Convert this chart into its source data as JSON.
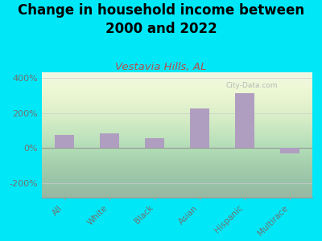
{
  "title": "Change in household income between\n2000 and 2022",
  "subtitle": "Vestavia Hills, AL",
  "categories": [
    "All",
    "White",
    "Black",
    "Asian",
    "Hispanic",
    "Multirace"
  ],
  "values": [
    75,
    85,
    55,
    225,
    310,
    -30
  ],
  "bar_color": "#b09ec0",
  "background_outer": "#00e8f8",
  "title_fontsize": 12,
  "subtitle_fontsize": 9.5,
  "subtitle_color": "#b05050",
  "tick_label_color": "#707070",
  "ylim": [
    -280,
    430
  ],
  "yticks": [
    -200,
    0,
    200,
    400
  ],
  "ytick_labels": [
    "-200%",
    "0%",
    "200%",
    "400%"
  ],
  "watermark": "City-Data.com",
  "watermark_color": "#b0b0b0"
}
